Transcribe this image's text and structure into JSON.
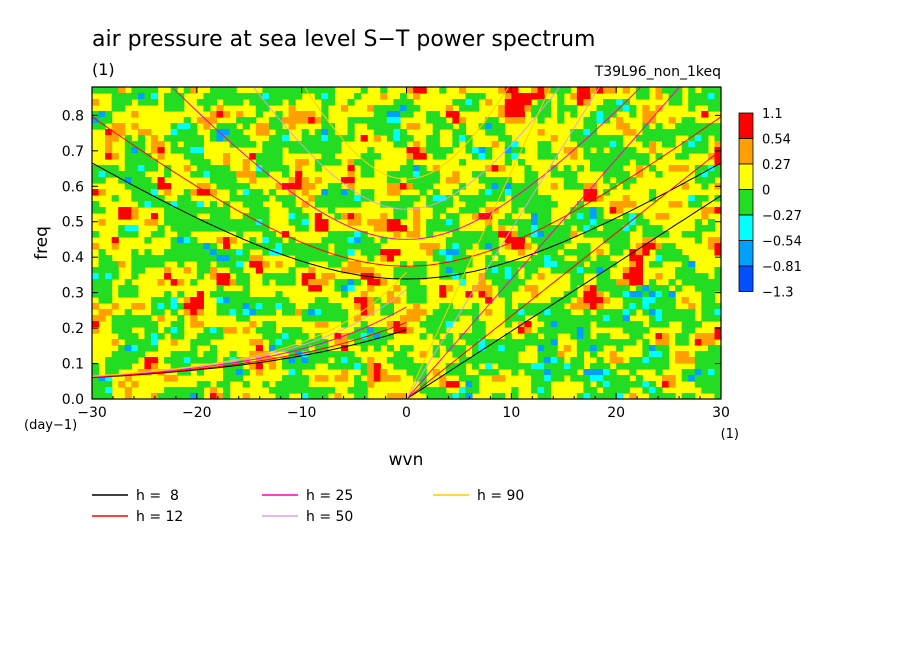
{
  "chart_data": {
    "type": "heatmap",
    "title": "air pressure at sea level S−T power spectrum",
    "title_units": "(1)",
    "experiment": "T39L96_non_1keq",
    "xlabel": "wvn",
    "x_units": "(1)",
    "ylabel": "freq",
    "y_units": "(day−1)",
    "xlim": [
      -30,
      30
    ],
    "ylim": [
      0.0,
      0.88
    ],
    "x_ticks": [
      "−30",
      "−20",
      "−10",
      "0",
      "10",
      "20",
      "30"
    ],
    "x_tick_values": [
      -30,
      -20,
      -10,
      0,
      10,
      20,
      30
    ],
    "y_ticks": [
      "0.0",
      "0.1",
      "0.2",
      "0.3",
      "0.4",
      "0.5",
      "0.6",
      "0.7",
      "0.8"
    ],
    "y_tick_values": [
      0.0,
      0.1,
      0.2,
      0.3,
      0.4,
      0.5,
      0.6,
      0.7,
      0.8
    ],
    "colorbar": {
      "levels": [
        "1.1",
        "0.54",
        "0.27",
        "0",
        "−0.27",
        "−0.54",
        "−0.81",
        "−1.3"
      ],
      "colors": [
        "#ff0000",
        "#ffa000",
        "#ffff00",
        "#22dd22",
        "#00ffff",
        "#00a0ff",
        "#0050ff"
      ],
      "bins": [
        [
          0.54,
          1.1
        ],
        [
          0.27,
          0.54
        ],
        [
          0.0,
          0.27
        ],
        [
          -0.27,
          0.0
        ],
        [
          -0.54,
          -0.27
        ],
        [
          -0.81,
          -0.54
        ],
        [
          -1.3,
          -0.81
        ]
      ]
    },
    "field_description": "noisy normalized spectral power anomaly, mostly 0 to 0.27 (yellow) and -0.27 to 0 (green)",
    "dispersion_curves": [
      {
        "name": "h =  8",
        "h": 8,
        "color": "#000000"
      },
      {
        "name": "h = 12",
        "h": 12,
        "color": "#ff0000"
      },
      {
        "name": "h = 25",
        "h": 25,
        "color": "#ff00aa"
      },
      {
        "name": "h = 50",
        "h": 50,
        "color": "#e0a0e0"
      },
      {
        "name": "h = 90",
        "h": 90,
        "color": "#ffcc00"
      }
    ],
    "legend_placement": "bottom-left"
  }
}
